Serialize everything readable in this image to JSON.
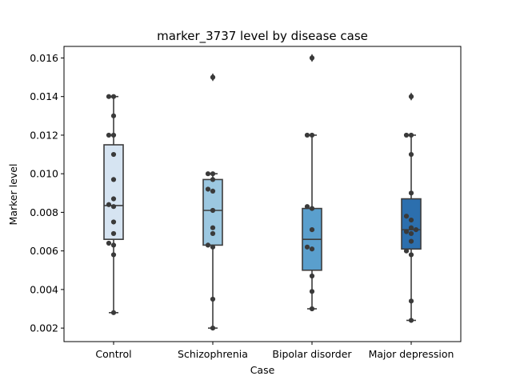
{
  "chart_data": {
    "type": "box",
    "title": "marker_3737 level by disease case",
    "xlabel": "Case",
    "ylabel": "Marker level",
    "ylim": [
      0.0013,
      0.0166
    ],
    "yticks": [
      "0.002",
      "0.004",
      "0.006",
      "0.008",
      "0.010",
      "0.012",
      "0.014",
      "0.016"
    ],
    "grid": false,
    "categories": [
      "Control",
      "Schizophrenia",
      "Bipolar disorder",
      "Major depression"
    ],
    "colors": [
      "#d6e4f2",
      "#9cc8e1",
      "#5a9fcd",
      "#2c6fae"
    ],
    "series": [
      {
        "q1": 0.0066,
        "median": 0.00835,
        "q3": 0.0115,
        "whisker_low": 0.0028,
        "whisker_high": 0.014,
        "outliers": [],
        "points": [
          0.014,
          0.014,
          0.013,
          0.012,
          0.012,
          0.011,
          0.0097,
          0.0087,
          0.0084,
          0.0083,
          0.0075,
          0.0069,
          0.0064,
          0.0063,
          0.0058,
          0.0028
        ]
      },
      {
        "q1": 0.0063,
        "median": 0.0081,
        "q3": 0.0097,
        "whisker_low": 0.002,
        "whisker_high": 0.01,
        "outliers": [
          0.015
        ],
        "points": [
          0.015,
          0.01,
          0.01,
          0.0097,
          0.0092,
          0.0091,
          0.0081,
          0.0072,
          0.0069,
          0.0063,
          0.0062,
          0.0035,
          0.002
        ]
      },
      {
        "q1": 0.005,
        "median": 0.0066,
        "q3": 0.0082,
        "whisker_low": 0.003,
        "whisker_high": 0.012,
        "outliers": [
          0.016
        ],
        "points": [
          0.016,
          0.012,
          0.012,
          0.0083,
          0.0082,
          0.0071,
          0.0062,
          0.0061,
          0.0047,
          0.0039,
          0.003
        ]
      },
      {
        "q1": 0.0061,
        "median": 0.0071,
        "q3": 0.0087,
        "whisker_low": 0.0024,
        "whisker_high": 0.012,
        "outliers": [
          0.014
        ],
        "points": [
          0.014,
          0.012,
          0.012,
          0.011,
          0.009,
          0.0078,
          0.0076,
          0.0072,
          0.0071,
          0.007,
          0.0069,
          0.0065,
          0.006,
          0.0058,
          0.0034,
          0.0024
        ]
      }
    ]
  }
}
